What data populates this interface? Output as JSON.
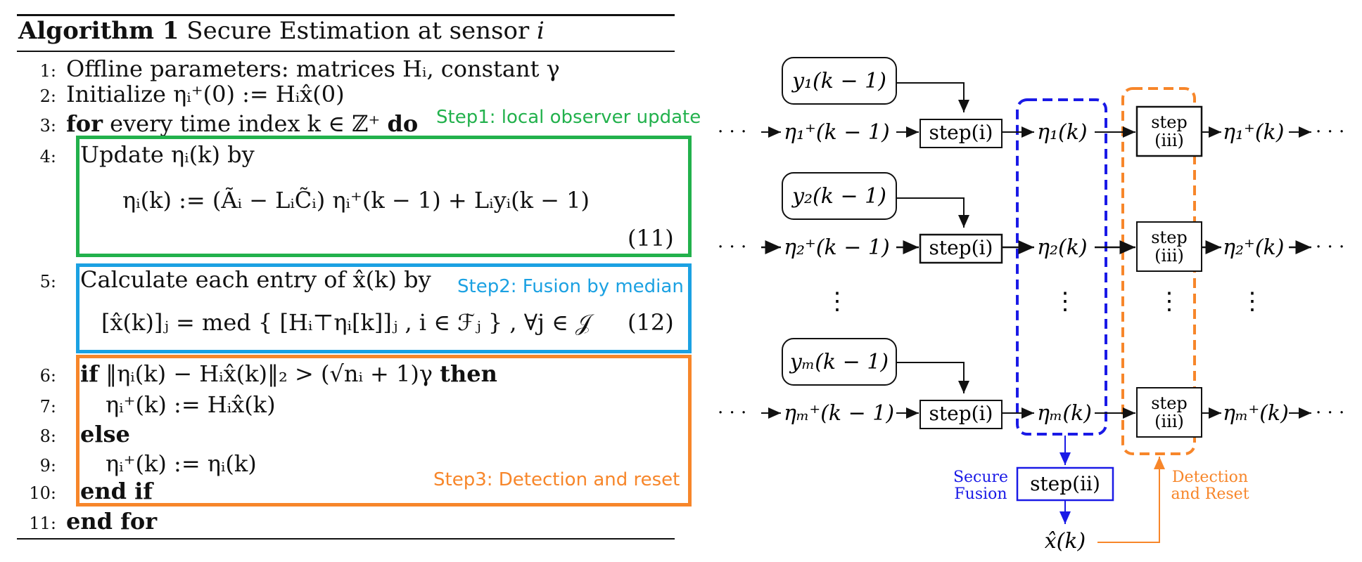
{
  "algorithm": {
    "title_bold": "Algorithm 1",
    "title_rest": " Secure Estimation at sensor ",
    "title_var": "i",
    "lines": [
      {
        "num": "1:",
        "text": "Offline parameters: matrices Hᵢ, constant γ"
      },
      {
        "num": "2:",
        "text": "Initialize ηᵢ⁺(0) := Hᵢx̂(0)"
      },
      {
        "num": "3:",
        "kw1": "for",
        "text": " every time index k ∈ ℤ⁺ ",
        "kw2": "do"
      },
      {
        "num": "4:",
        "text": "Update ηᵢ(k) by"
      },
      {
        "num": "5:",
        "text": "Calculate each entry of x̂(k) by"
      },
      {
        "num": "6:",
        "kw1": "if",
        "text": " ‖ηᵢ(k) − Hᵢx̂(k)‖₂ > (√nᵢ + 1)γ ",
        "kw2": "then"
      },
      {
        "num": "7:",
        "text": "ηᵢ⁺(k) := Hᵢx̂(k)"
      },
      {
        "num": "8:",
        "kw1": "else",
        "text": ""
      },
      {
        "num": "9:",
        "text": "ηᵢ⁺(k) := ηᵢ(k)"
      },
      {
        "num": "10:",
        "kw1": "end if",
        "text": ""
      },
      {
        "num": "11:",
        "kw1": "end for",
        "text": ""
      }
    ],
    "eq11": "ηᵢ(k) := (Ãᵢ − LᵢC̃ᵢ) ηᵢ⁺(k − 1) + Lᵢyᵢ(k − 1)",
    "eq11_num": "(11)",
    "eq12": "[x̂(k)]ⱼ = med { [Hᵢ⊤ηᵢ[k]]ⱼ , i ∈ ℱⱼ } ,  ∀j ∈ 𝒥",
    "eq12_num": "(12)",
    "step1_label": "Step1: local observer update",
    "step2_label": "Step2: Fusion by median",
    "step3_label": "Step3: Detection and reset",
    "colors": {
      "step1": "#22b14c",
      "step2": "#1ba1e2",
      "step3": "#f7862a"
    }
  },
  "flow": {
    "dots": "· · ·",
    "rows": [
      {
        "y_in": "y₁(k − 1)",
        "eta_prev": "η₁⁺(k − 1)",
        "eta": "η₁(k)",
        "eta_next": "η₁⁺(k)"
      },
      {
        "y_in": "y₂(k − 1)",
        "eta_prev": "η₂⁺(k − 1)",
        "eta": "η₂(k)",
        "eta_next": "η₂⁺(k)"
      },
      {
        "y_in": "yₘ(k − 1)",
        "eta_prev": "ηₘ⁺(k − 1)",
        "eta": "ηₘ(k)",
        "eta_next": "ηₘ⁺(k)"
      }
    ],
    "vdots": "⋮",
    "step_i": "step(i)",
    "step_iii_top": "step",
    "step_iii_bot": "(iii)",
    "step_ii": "step(ii)",
    "xhat": "x̂(k)",
    "secure_label_1": "Secure",
    "secure_label_2": "Fusion",
    "detect_label_1": "Detection",
    "detect_label_2": "and Reset",
    "colors": {
      "fusion": "#1a1ae6",
      "detect": "#f7862a"
    }
  }
}
